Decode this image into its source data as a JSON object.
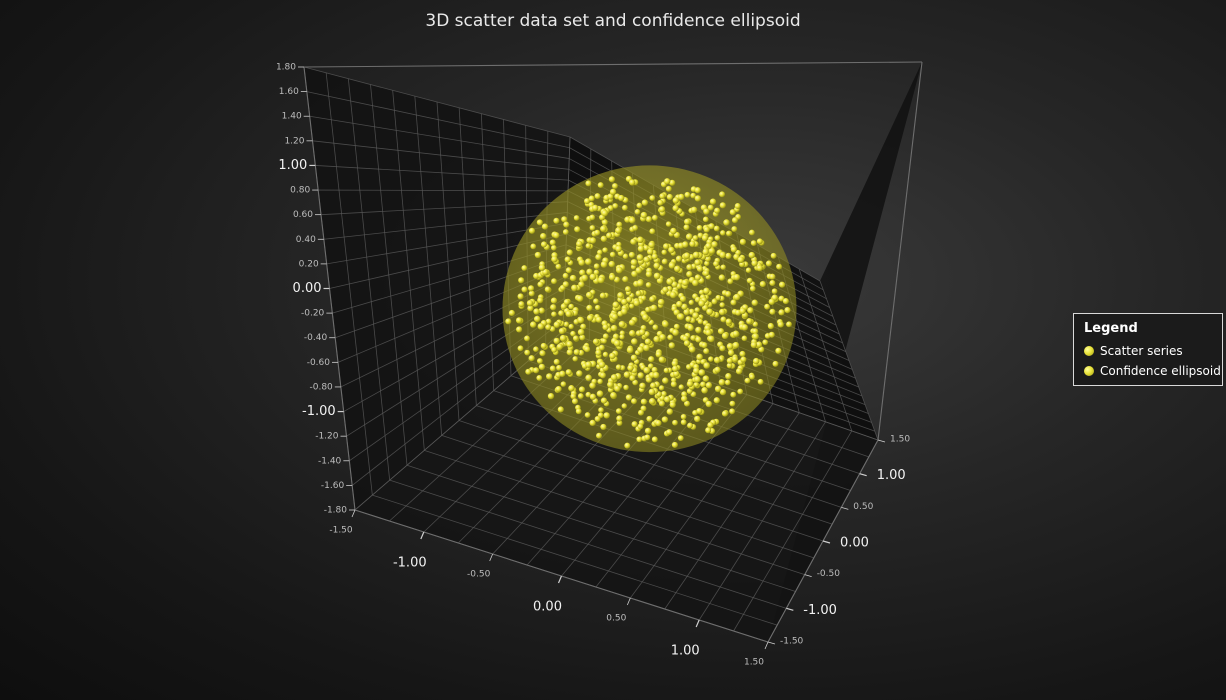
{
  "chart_data": {
    "type": "scatter",
    "title": "3D scatter data set and confidence ellipsoid",
    "axes": {
      "y": {
        "range": [
          -1.8,
          1.8
        ],
        "major_ticks": [
          "1.00",
          "0.00",
          "-1.00"
        ],
        "minor_ticks": [
          "1.80",
          "1.60",
          "1.40",
          "1.20",
          "0.80",
          "0.60",
          "0.40",
          "0.20",
          "-0.20",
          "-0.40",
          "-0.60",
          "-0.80",
          "-1.20",
          "-1.40",
          "-1.60",
          "-1.80"
        ]
      },
      "x": {
        "range": [
          -1.5,
          1.5
        ],
        "major_ticks": [
          "-1.00",
          "0.00",
          "1.00"
        ],
        "minor_ticks": [
          "-1.50",
          "-0.50",
          "0.50",
          "1.50"
        ]
      },
      "z": {
        "range": [
          -1.5,
          1.5
        ],
        "major_ticks": [
          "1.00",
          "0.00",
          "-1.00"
        ],
        "minor_ticks": [
          "1.50",
          "0.50",
          "-0.50",
          "-1.50"
        ]
      }
    },
    "grid": true,
    "legend_position": "right",
    "series": [
      {
        "name": "Scatter series",
        "color": "#e6e040",
        "point_count_approx": 1000,
        "distribution": "uniform within unit sphere centred at (0,0,0)"
      },
      {
        "name": "Confidence ellipsoid",
        "color": "#b5b02e",
        "center": [
          0,
          0,
          0
        ],
        "radii": [
          1,
          1,
          1
        ]
      }
    ]
  },
  "legend": {
    "title": "Legend",
    "items": [
      "Scatter series",
      "Confidence ellipsoid"
    ]
  },
  "colors": {
    "point": "#e6e040",
    "ellipsoid": "#b5b02e",
    "grid": "#5a5a5a",
    "background": "#1e1e1e"
  }
}
